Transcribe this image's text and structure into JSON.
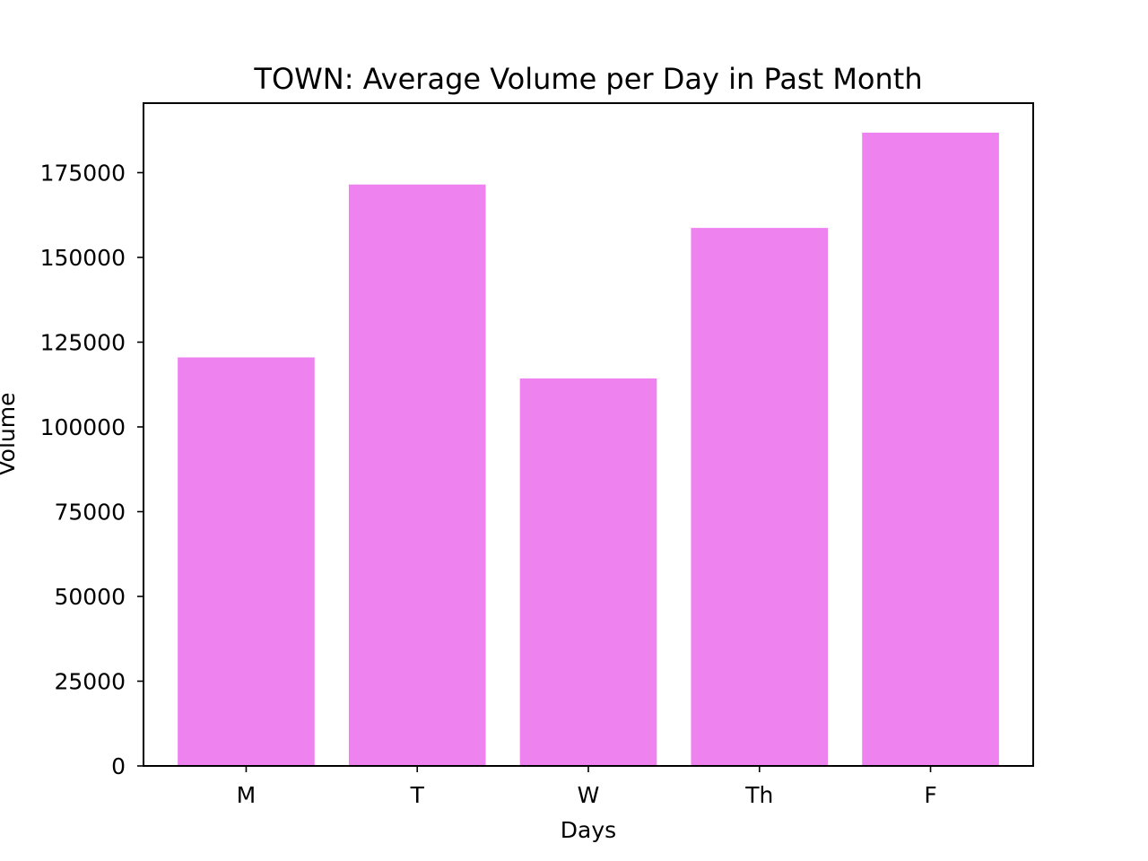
{
  "chart_data": {
    "type": "bar",
    "title": "TOWN: Average Volume per Day in Past Month",
    "xlabel": "Days",
    "ylabel": "Volume",
    "categories": [
      "M",
      "T",
      "W",
      "Th",
      "F"
    ],
    "values": [
      120500,
      171500,
      114300,
      158700,
      186800
    ],
    "ylim": [
      0,
      195500
    ],
    "yticks": [
      0,
      25000,
      50000,
      75000,
      100000,
      125000,
      150000,
      175000
    ],
    "bar_color": "#ee82ee",
    "grid": false,
    "legend": "none"
  }
}
